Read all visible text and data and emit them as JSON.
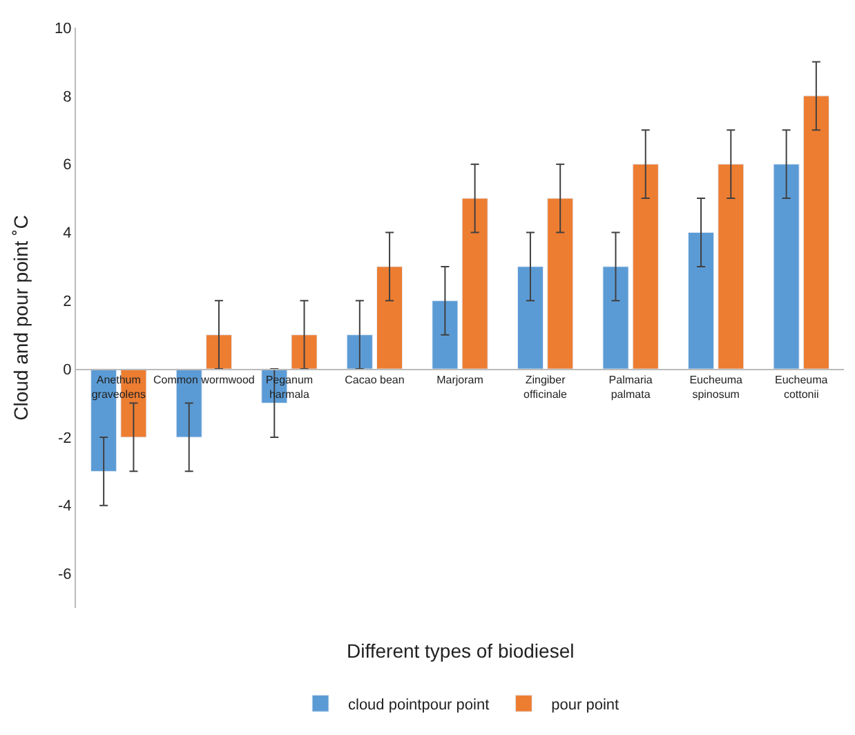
{
  "chart_data": {
    "type": "bar",
    "categories": [
      "Anethum\ngraveolens",
      "Common wormwood",
      "Peganum\nharmala",
      "Cacao bean",
      "Marjoram",
      "Zingiber\nofficinale",
      "Palmaria\npalmata",
      "Eucheuma\nspinosum",
      "Eucheuma\ncottonii"
    ],
    "series": [
      {
        "name": "cloud pointpour point",
        "color": "#5b9bd5",
        "values": [
          -3,
          -2,
          -1,
          1,
          2,
          3,
          3,
          4,
          6
        ],
        "errors": [
          1,
          1,
          1,
          1,
          1,
          1,
          1,
          1,
          1
        ]
      },
      {
        "name": "pour point",
        "color": "#ed7d31",
        "values": [
          -2,
          1,
          1,
          3,
          5,
          5,
          6,
          6,
          8
        ],
        "errors": [
          1,
          1,
          1,
          1,
          1,
          1,
          1,
          1,
          1
        ]
      }
    ],
    "xlabel": "Different types of biodiesel",
    "ylabel": "Cloud and pour point ˚C",
    "ylim": [
      -7,
      10
    ],
    "yticks": [
      -6,
      -4,
      -2,
      0,
      2,
      4,
      6,
      8,
      10
    ],
    "legend": "bottom"
  }
}
